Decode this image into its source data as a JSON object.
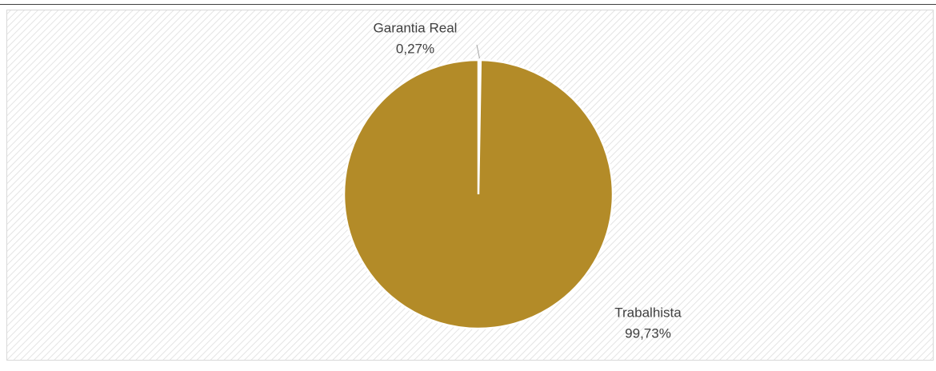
{
  "chart_data": {
    "type": "pie",
    "categories": [
      "Garantia Real",
      "Trabalhista"
    ],
    "values": [
      0.27,
      99.73
    ],
    "value_labels": [
      "0,27%",
      "99,73%"
    ],
    "colors": [
      "#f2f2f2",
      "#b38b28"
    ]
  }
}
